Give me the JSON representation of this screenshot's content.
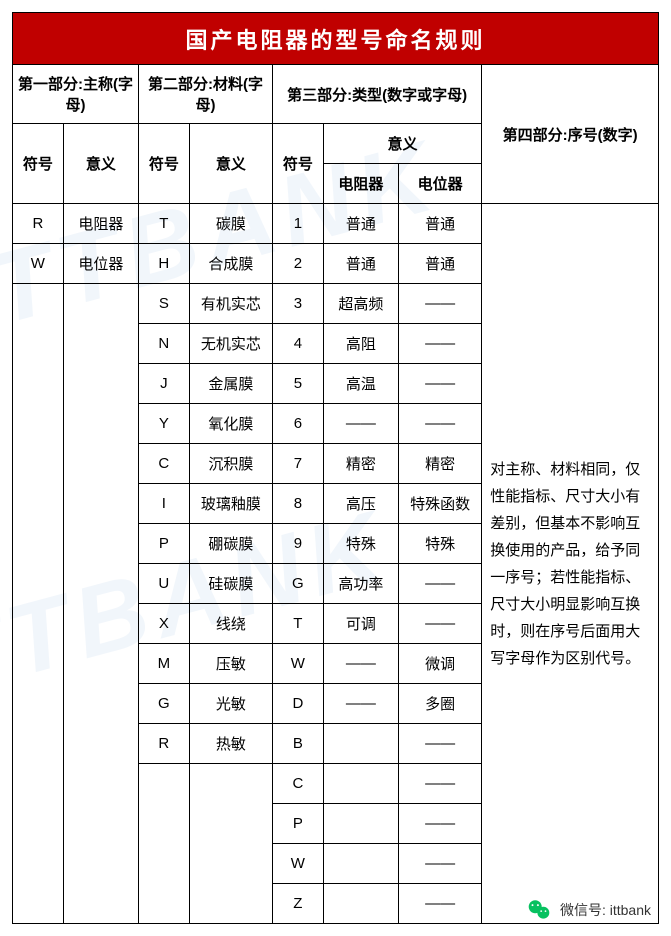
{
  "title": "国产电阻器的型号命名规则",
  "headers": {
    "part1": "第一部分:主称(字母)",
    "part2": "第二部分:材料(字母)",
    "part3": "第三部分:类型(数字或字母)",
    "part4": "第四部分:序号(数字)",
    "symbol": "符号",
    "meaning": "意义",
    "resistor": "电阻器",
    "potentiometer": "电位器"
  },
  "part1_rows": [
    {
      "sym": "R",
      "mean": "电阻器"
    },
    {
      "sym": "W",
      "mean": "电位器"
    }
  ],
  "part2_rows": [
    {
      "sym": "T",
      "mean": "碳膜"
    },
    {
      "sym": "H",
      "mean": "合成膜"
    },
    {
      "sym": "S",
      "mean": "有机实芯"
    },
    {
      "sym": "N",
      "mean": "无机实芯"
    },
    {
      "sym": "J",
      "mean": "金属膜"
    },
    {
      "sym": "Y",
      "mean": "氧化膜"
    },
    {
      "sym": "C",
      "mean": "沉积膜"
    },
    {
      "sym": "I",
      "mean": "玻璃釉膜"
    },
    {
      "sym": "P",
      "mean": "硼碳膜"
    },
    {
      "sym": "U",
      "mean": "硅碳膜"
    },
    {
      "sym": "X",
      "mean": "线绕"
    },
    {
      "sym": "M",
      "mean": "压敏"
    },
    {
      "sym": "G",
      "mean": "光敏"
    },
    {
      "sym": "R",
      "mean": "热敏"
    }
  ],
  "part3_rows": [
    {
      "sym": "1",
      "r": "普通",
      "p": "普通"
    },
    {
      "sym": "2",
      "r": "普通",
      "p": "普通"
    },
    {
      "sym": "3",
      "r": "超高频",
      "p": "——"
    },
    {
      "sym": "4",
      "r": "高阻",
      "p": "——"
    },
    {
      "sym": "5",
      "r": "高温",
      "p": "——"
    },
    {
      "sym": "6",
      "r": "——",
      "p": "——"
    },
    {
      "sym": "7",
      "r": "精密",
      "p": "精密"
    },
    {
      "sym": "8",
      "r": "高压",
      "p": "特殊函数"
    },
    {
      "sym": "9",
      "r": "特殊",
      "p": "特殊"
    },
    {
      "sym": "G",
      "r": "高功率",
      "p": "——"
    },
    {
      "sym": "T",
      "r": "可调",
      "p": "——"
    },
    {
      "sym": "W",
      "r": "——",
      "p": "微调"
    },
    {
      "sym": "D",
      "r": "——",
      "p": "多圈"
    },
    {
      "sym": "B",
      "r": "",
      "p": "——"
    },
    {
      "sym": "C",
      "r": "",
      "p": "——"
    },
    {
      "sym": "P",
      "r": "",
      "p": "——"
    },
    {
      "sym": "W",
      "r": "",
      "p": "——"
    },
    {
      "sym": "Z",
      "r": "",
      "p": "——"
    }
  ],
  "note": "对主称、材料相同，仅性能指标、尺寸大小有差别，但基本不影响互换使用的产品，给予同一序号；若性能指标、尺寸大小明显影响互换时，则在序号后面用大写字母作为区别代号。",
  "footer": {
    "label": "微信号",
    "value": "ittbank"
  },
  "colors": {
    "title_bg": "#c00000",
    "title_fg": "#ffffff",
    "border": "#000000",
    "wechat": "#07c160"
  }
}
